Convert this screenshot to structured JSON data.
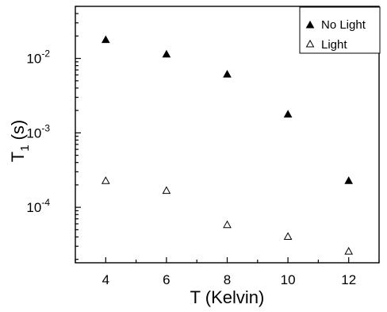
{
  "chart_data": {
    "type": "scatter",
    "xlabel": "T (Kelvin)",
    "ylabel_main": "T",
    "ylabel_sub": "1",
    "ylabel_unit": "(s)",
    "xlim": [
      3,
      13
    ],
    "ylim": [
      1.8e-05,
      0.05
    ],
    "yscale": "log",
    "xticks": [
      4,
      6,
      8,
      10,
      12
    ],
    "yticks": [
      {
        "value": 0.0001,
        "base": "10",
        "exp": "-4"
      },
      {
        "value": 0.001,
        "base": "10",
        "exp": "-3"
      },
      {
        "value": 0.01,
        "base": "10",
        "exp": "-2"
      }
    ],
    "legend_position": "top-right",
    "series": [
      {
        "name": "No Light",
        "marker": "filled-triangle",
        "x": [
          4,
          6,
          8,
          10,
          12
        ],
        "y": [
          0.018,
          0.0115,
          0.0062,
          0.0018,
          0.00023
        ]
      },
      {
        "name": "Light",
        "marker": "open-triangle",
        "x": [
          4,
          6,
          8,
          10,
          12
        ],
        "y": [
          0.00023,
          0.00017,
          5.9e-05,
          4.1e-05,
          2.6e-05
        ]
      }
    ]
  }
}
